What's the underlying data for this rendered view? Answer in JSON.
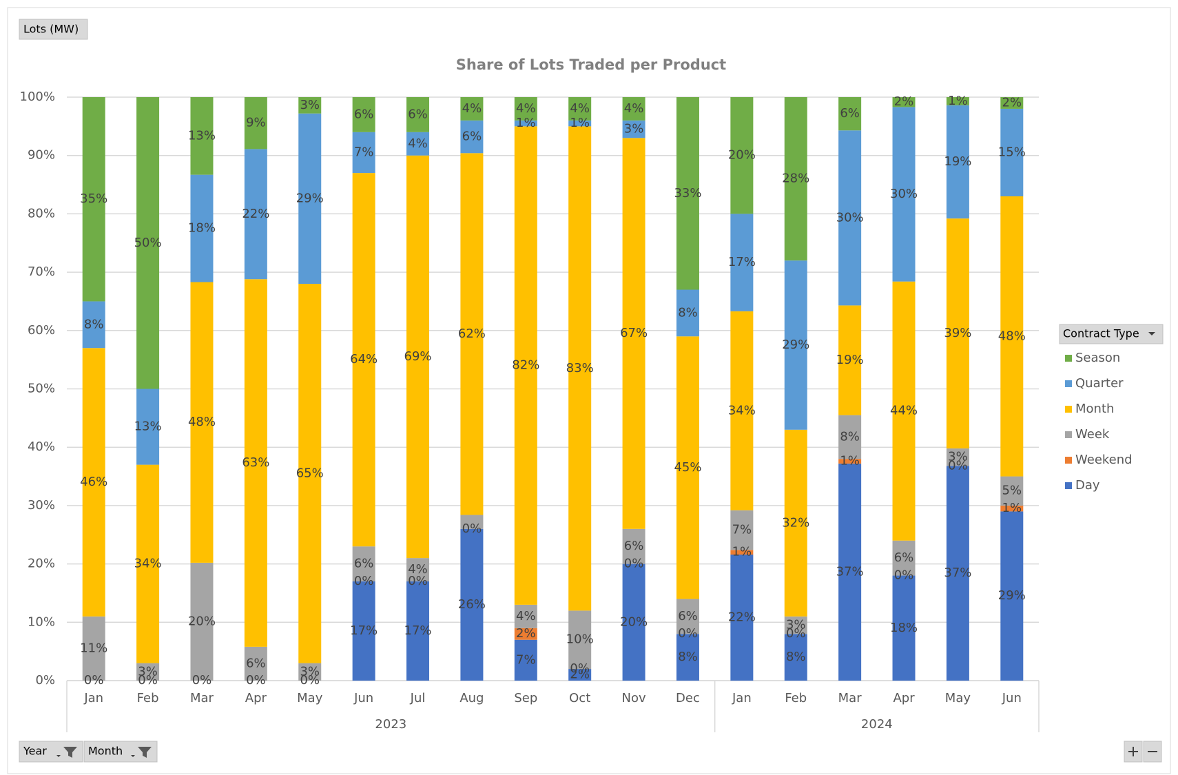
{
  "chart_data": {
    "type": "stacked_bar",
    "title": "Share of Lots Traded per Product",
    "field_button": "Lots (MW)",
    "legend_title": "Contract Type",
    "filters": [
      "Year",
      "Month"
    ],
    "categories": [
      "Jan",
      "Feb",
      "Mar",
      "Apr",
      "May",
      "Jun",
      "Jul",
      "Aug",
      "Sep",
      "Oct",
      "Nov",
      "Dec",
      "Jan",
      "Feb",
      "Mar",
      "Apr",
      "May",
      "Jun"
    ],
    "category_groups": [
      "2023",
      "2023",
      "2023",
      "2023",
      "2023",
      "2023",
      "2023",
      "2023",
      "2023",
      "2023",
      "2023",
      "2023",
      "2024",
      "2024",
      "2024",
      "2024",
      "2024",
      "2024"
    ],
    "ylim": [
      0,
      100
    ],
    "yticks": [
      {
        "value": 0,
        "label": "0%"
      },
      {
        "value": 10,
        "label": "10%"
      },
      {
        "value": 20,
        "label": "20%"
      },
      {
        "value": 30,
        "label": "30%"
      },
      {
        "value": 40,
        "label": "40%"
      },
      {
        "value": 50,
        "label": "50%"
      },
      {
        "value": 60,
        "label": "60%"
      },
      {
        "value": 70,
        "label": "70%"
      },
      {
        "value": 80,
        "label": "80%"
      },
      {
        "value": 90,
        "label": "90%"
      },
      {
        "value": 100,
        "label": "100%"
      }
    ],
    "grid": true,
    "legend": "right",
    "series": [
      {
        "name": "Day",
        "color": "#4472c4",
        "values": [
          0,
          0,
          0,
          0,
          0,
          17,
          17,
          26,
          7,
          2,
          20,
          8,
          21.6,
          8,
          37.2,
          18,
          36.8,
          29
        ],
        "value_labels": [
          "0%",
          "0%",
          "0%",
          "0%",
          "0%",
          "17%",
          "17%",
          "26%",
          "7%",
          "2%",
          "20%",
          "8%",
          "22%",
          "8%",
          "37%",
          "18%",
          "37%",
          "29%"
        ]
      },
      {
        "name": "Weekend",
        "color": "#ed7d31",
        "values": [
          0,
          0,
          0,
          0,
          0,
          0,
          0,
          0,
          2,
          0,
          0,
          0,
          0.8,
          0,
          0.8,
          0,
          0,
          1
        ],
        "value_labels": [
          null,
          null,
          null,
          null,
          null,
          "0%",
          "0%",
          "0%",
          "2%",
          "0%",
          "0%",
          "0%",
          "1%",
          "0%",
          "1%",
          "0%",
          "0%",
          "1%"
        ]
      },
      {
        "name": "Week",
        "color": "#a5a5a5",
        "values": [
          11,
          3,
          20.2,
          5.8,
          3,
          6,
          4,
          2.4,
          4,
          10,
          6,
          6,
          6.8,
          3,
          7.5,
          6,
          3,
          5
        ],
        "value_labels": [
          "11%",
          "3%",
          "20%",
          "6%",
          "3%",
          "6%",
          "4%",
          null,
          "4%",
          "10%",
          "6%",
          "6%",
          "7%",
          "3%",
          "8%",
          "6%",
          "3%",
          "5%"
        ]
      },
      {
        "name": "Month",
        "color": "#ffc000",
        "values": [
          46,
          34,
          48.1,
          63,
          65,
          64,
          69,
          62,
          82,
          83,
          67,
          45,
          34.1,
          32,
          18.8,
          44.4,
          39.4,
          48
        ],
        "value_labels": [
          "46%",
          "34%",
          "48%",
          "63%",
          "65%",
          "64%",
          "69%",
          "62%",
          "82%",
          "83%",
          "67%",
          "45%",
          "34%",
          "32%",
          "19%",
          "44%",
          "39%",
          "48%"
        ]
      },
      {
        "name": "Quarter",
        "color": "#5b9bd5",
        "values": [
          8,
          13,
          18.4,
          22.3,
          29.2,
          7,
          4,
          5.6,
          1,
          1,
          3,
          8,
          16.7,
          29,
          30,
          29.9,
          19.4,
          15
        ],
        "value_labels": [
          "8%",
          "13%",
          "18%",
          "22%",
          "29%",
          "7%",
          "4%",
          "6%",
          "1%",
          "1%",
          "3%",
          "8%",
          "17%",
          "29%",
          "30%",
          "30%",
          "19%",
          "15%"
        ]
      },
      {
        "name": "Season",
        "color": "#70ad47",
        "values": [
          35,
          50,
          13.3,
          8.9,
          2.8,
          6,
          6,
          4,
          4,
          4,
          4,
          33,
          20,
          28,
          5.7,
          1.7,
          1.4,
          2
        ],
        "value_labels": [
          "35%",
          "50%",
          "13%",
          "9%",
          "3%",
          "6%",
          "6%",
          "4%",
          "4%",
          "4%",
          "4%",
          "33%",
          "20%",
          "28%",
          "6%",
          "2%",
          "1%",
          "2%"
        ]
      }
    ]
  }
}
